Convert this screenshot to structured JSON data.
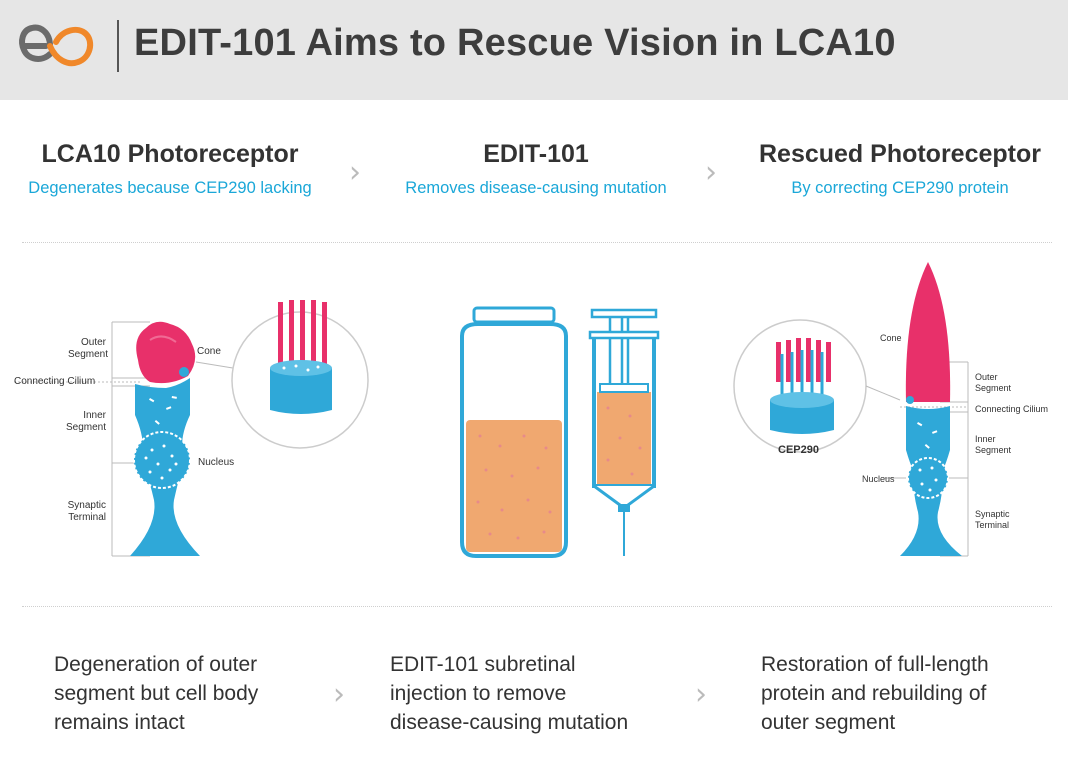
{
  "header": {
    "logo_icon": "editas-logo-icon",
    "title": "EDIT-101 Aims to Rescue Vision in LCA10"
  },
  "columns": [
    {
      "heading": "LCA10 Photoreceptor",
      "subheading": "Degenerates because CEP290 lacking",
      "description": "Degeneration of outer\nsegment but cell body\nremains intact"
    },
    {
      "heading": "EDIT-101",
      "subheading": "Removes disease-causing mutation",
      "description": "EDIT-101 subretinal\ninjection to remove\ndisease-causing mutation"
    },
    {
      "heading": "Rescued Photoreceptor",
      "subheading": "By correcting CEP290 protein",
      "description": "Restoration of full-length\nprotein and rebuilding of\nouter segment"
    }
  ],
  "left_cell_labels": {
    "outer_segment": [
      "Outer",
      "Segment"
    ],
    "cone": "Cone",
    "connecting_cilium": "Connecting Cilium",
    "inner_segment": [
      "Inner",
      "Segment"
    ],
    "nucleus": "Nucleus",
    "synaptic_terminal": [
      "Synaptic",
      "Terminal"
    ]
  },
  "right_cell_labels": {
    "cone": "Cone",
    "outer_segment": [
      "Outer",
      "Segment"
    ],
    "connecting_cilium": "Connecting Cilium",
    "inner_segment": [
      "Inner",
      "Segment"
    ],
    "nucleus": "Nucleus",
    "synaptic_terminal": [
      "Synaptic",
      "Terminal"
    ],
    "cep290": "CEP290"
  },
  "colors": {
    "accent_blue": "#1aa7d8",
    "cell_blue": "#2fa8d8",
    "cone_pink": "#e8306a",
    "fluid_orange": "#f0a870",
    "title_gray": "#3d3d3d"
  }
}
